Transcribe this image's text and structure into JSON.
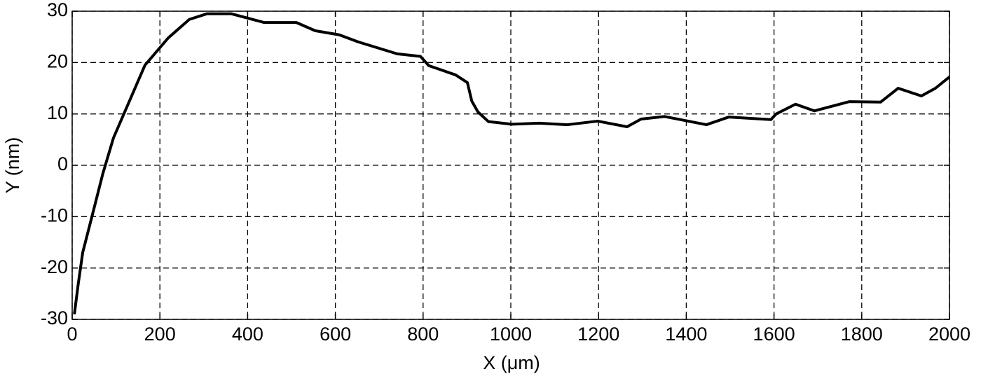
{
  "chart_data": {
    "type": "line",
    "xlabel": "X (μm)",
    "ylabel": "Y (nm)",
    "xlim": [
      0,
      2000
    ],
    "ylim": [
      -30,
      30
    ],
    "xticks": [
      0,
      200,
      400,
      600,
      800,
      1000,
      1200,
      1400,
      1600,
      1800,
      2000
    ],
    "yticks": [
      -30,
      -20,
      -10,
      0,
      10,
      20,
      30
    ],
    "grid": true,
    "series": [
      {
        "color": "#000000",
        "x": [
          5,
          14,
          24,
          45,
          70,
          94,
          166,
          219,
          267,
          307,
          363,
          438,
          511,
          554,
          609,
          653,
          741,
          794,
          813,
          874,
          901,
          911,
          925,
          949,
          1002,
          1065,
          1129,
          1198,
          1265,
          1297,
          1350,
          1446,
          1497,
          1593,
          1605,
          1649,
          1692,
          1772,
          1843,
          1883,
          1936,
          1968,
          2000
        ],
        "values": [
          -29,
          -23,
          -17,
          -10,
          -1.6,
          5.3,
          19.5,
          24.8,
          28.4,
          29.5,
          29.5,
          27.8,
          27.8,
          26.2,
          25.4,
          24,
          21.7,
          21.2,
          19.4,
          17.6,
          16.1,
          12.5,
          10.4,
          8.5,
          8,
          8.2,
          7.9,
          8.6,
          7.5,
          9,
          9.5,
          7.9,
          9.4,
          8.9,
          10,
          11.9,
          10.6,
          12.4,
          12.3,
          15,
          13.5,
          15,
          17.2
        ]
      }
    ]
  }
}
